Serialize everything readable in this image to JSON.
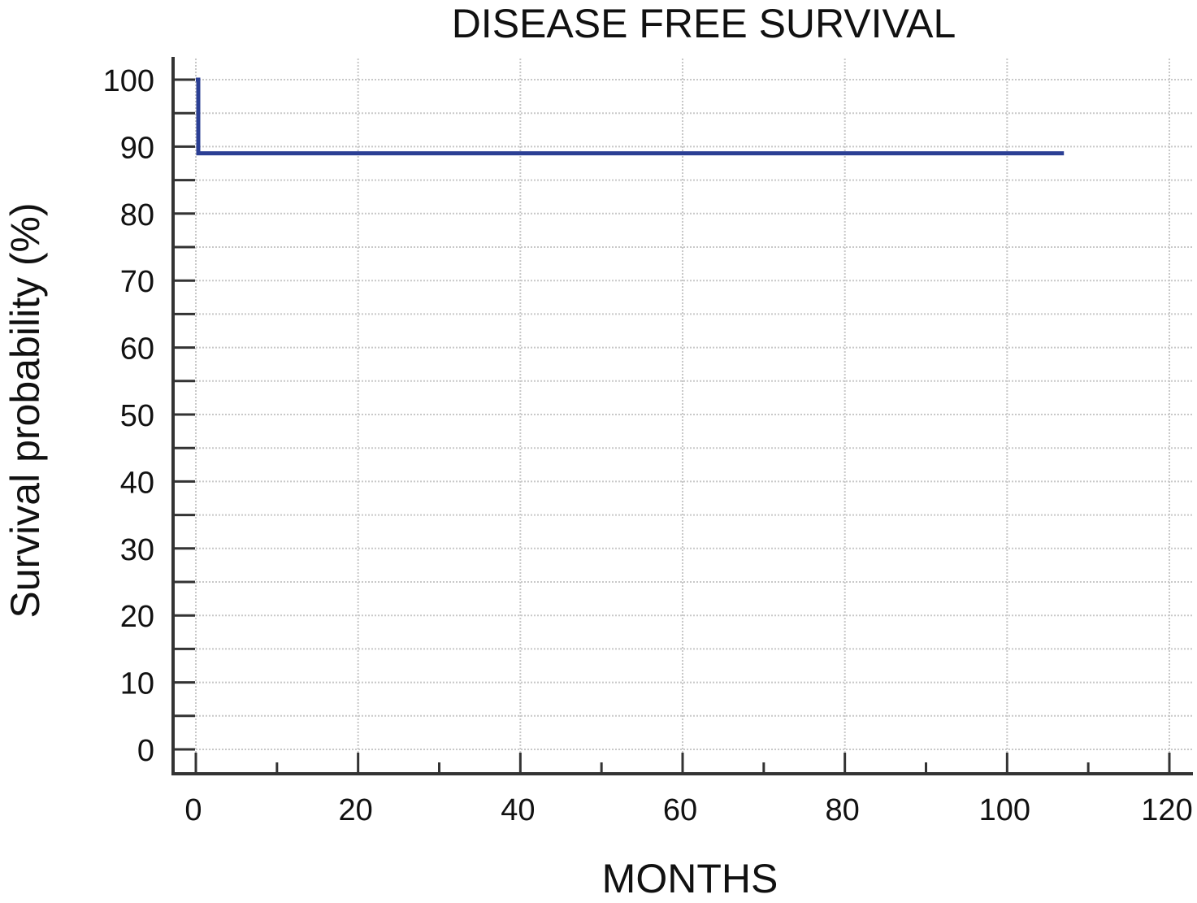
{
  "chart_data": {
    "type": "line",
    "title": "DISEASE FREE SURVIVAL",
    "xlabel": "MONTHS",
    "ylabel": "Survival probability (%)",
    "xlim": [
      0,
      120
    ],
    "ylim": [
      0,
      100
    ],
    "x_ticks": [
      0,
      20,
      40,
      60,
      80,
      100,
      120
    ],
    "x_minor_ticks": [
      10,
      30,
      50,
      70,
      90,
      110
    ],
    "y_ticks": [
      0,
      10,
      20,
      30,
      40,
      50,
      60,
      70,
      80,
      90,
      100
    ],
    "y_minor_ticks": [
      5,
      15,
      25,
      35,
      45,
      55,
      65,
      75,
      85,
      95
    ],
    "grid": true,
    "series": [
      {
        "step": "post",
        "x": [
          0,
          0.3,
          107
        ],
        "y": [
          100,
          89,
          89
        ]
      }
    ],
    "colors": {
      "line": "#2b3f94",
      "axis": "#333333",
      "grid": "#c8c8c8"
    }
  }
}
